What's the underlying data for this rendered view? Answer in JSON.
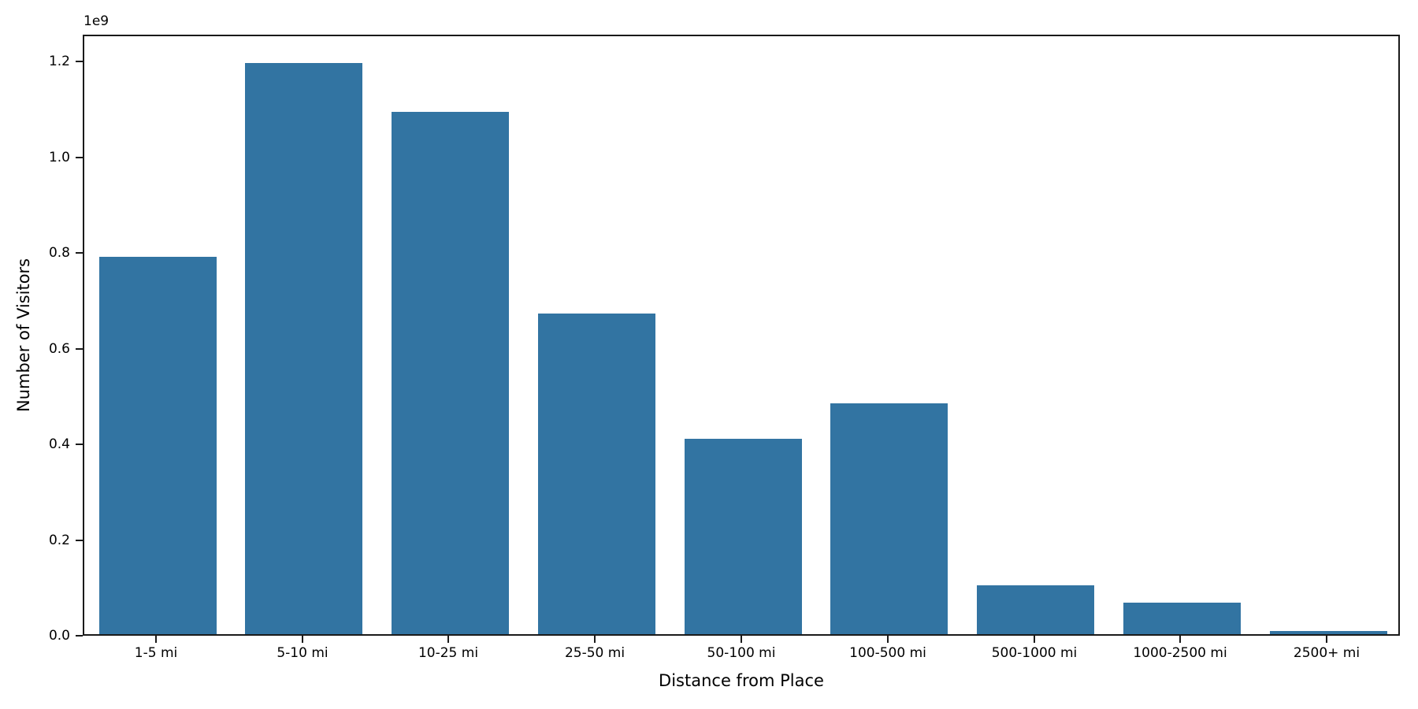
{
  "chart_data": {
    "type": "bar",
    "title": "",
    "xlabel": "Distance from Place",
    "ylabel": "Number of Visitors",
    "y_offset_text": "1e9",
    "categories": [
      "1-5 mi",
      "5-10 mi",
      "10-25 mi",
      "25-50 mi",
      "50-100 mi",
      "100-500 mi",
      "500-1000 mi",
      "1000-2500 mi",
      "2500+ mi"
    ],
    "values": [
      789000000,
      1193000000,
      1091000000,
      670000000,
      408000000,
      482000000,
      102000000,
      66000000,
      6000000
    ],
    "ylim": [
      0,
      1256000000
    ],
    "yticks": [
      0,
      200000000,
      400000000,
      600000000,
      800000000,
      1000000000,
      1200000000
    ],
    "ytick_labels": [
      "0.0",
      "0.2",
      "0.4",
      "0.6",
      "0.8",
      "1.0",
      "1.2"
    ],
    "bar_color": "#3274a2",
    "axis_color": "#1a1a1a",
    "grid": false,
    "legend": null,
    "bar_width_fraction": 0.8
  }
}
